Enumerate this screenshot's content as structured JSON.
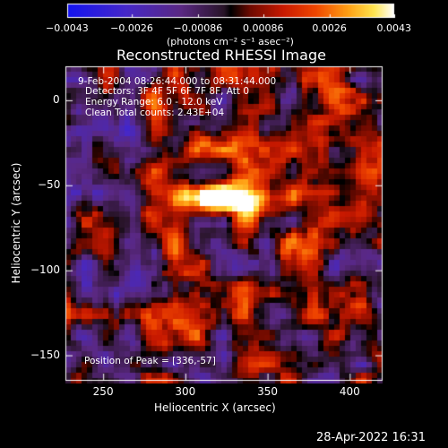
{
  "chart_data": {
    "type": "heatmap",
    "title": "Reconstructed RHESSI Image",
    "xlabel": "Heliocentric X (arcsec)",
    "ylabel": "Heliocentric Y (arcsec)",
    "xlim": [
      227,
      420
    ],
    "ylim": [
      -165,
      20
    ],
    "xticks": [
      250,
      300,
      350,
      400
    ],
    "xtick_labels": [
      "250",
      "300",
      "350",
      "400"
    ],
    "yticks": [
      0,
      -50,
      -100,
      -150
    ],
    "ytick_labels": [
      "0",
      "−50",
      "−100",
      "−150"
    ],
    "colorbar": {
      "range": [
        -0.0043,
        0.0043
      ],
      "ticks": [
        -0.0043,
        -0.0026,
        -0.00086,
        0.00086,
        0.0026,
        0.0043
      ],
      "tick_labels": [
        "−0.0043",
        "−0.0026",
        "−0.00086",
        "0.00086",
        "0.0026",
        "0.0043"
      ],
      "units_label": "(photons cm⁻² s⁻¹ asec⁻²)",
      "colormap": "rhessi-bluewhite"
    },
    "annotations": {
      "time": "9-Feb-2004 08:26:44.000 to 08:31:44.000",
      "detectors": "Detectors: 3F 4F 5F 6F 7F 8F, Att 0",
      "energy": "Energy Range: 6.0 - 12.0 keV",
      "clean": "Clean    Total counts: 2.43E+04",
      "peak": "Position of Peak = [336,-57]"
    },
    "peak": {
      "x": 336,
      "y": -57
    },
    "grid": false
  },
  "footer": {
    "timestamp": "28-Apr-2022 16:31"
  }
}
